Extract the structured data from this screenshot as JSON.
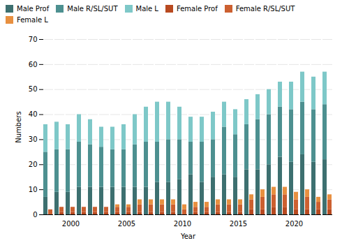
{
  "chart_data": {
    "type": "bar",
    "stacked": true,
    "categories": [
      null,
      null,
      "2000",
      null,
      null,
      null,
      null,
      "2005",
      null,
      null,
      null,
      null,
      "2010",
      null,
      null,
      null,
      null,
      "2015",
      null,
      null,
      null,
      null,
      "2020",
      null,
      null,
      null
    ],
    "series": [
      {
        "name": "Male Prof",
        "color": "#3d7070",
        "stacked": "Male",
        "values": [
          7,
          9,
          9,
          11,
          11,
          11,
          11,
          11,
          11,
          11,
          13,
          13,
          14,
          16,
          13,
          15,
          16,
          15,
          18,
          18,
          20,
          23,
          21,
          24,
          21,
          22
        ]
      },
      {
        "name": "Male R/SL/SUT",
        "color": "#4d9090",
        "stacked": "Male",
        "values": [
          18,
          17,
          17,
          18,
          17,
          16,
          15,
          15,
          17,
          18,
          16,
          17,
          16,
          13,
          16,
          15,
          19,
          17,
          18,
          20,
          20,
          20,
          21,
          21,
          21,
          22
        ]
      },
      {
        "name": "Male L",
        "color": "#7ec8c8",
        "stacked": "Male",
        "values": [
          11,
          11,
          10,
          11,
          10,
          8,
          9,
          10,
          12,
          14,
          16,
          15,
          13,
          10,
          10,
          11,
          10,
          10,
          10,
          10,
          10,
          10,
          11,
          12,
          13,
          13
        ]
      },
      {
        "name": "Female Prof",
        "color": "#b84a20",
        "stacked": "Female",
        "values": [
          0,
          1,
          1,
          1,
          1,
          1,
          1,
          1,
          1,
          1,
          1,
          1,
          0,
          1,
          1,
          1,
          1,
          1,
          2,
          2,
          3,
          3,
          2,
          2,
          2,
          2
        ]
      },
      {
        "name": "Female R/SL/SUT",
        "color": "#cc6030",
        "stacked": "Female",
        "values": [
          2,
          2,
          2,
          2,
          2,
          2,
          2,
          2,
          3,
          3,
          3,
          3,
          2,
          2,
          2,
          3,
          3,
          3,
          4,
          5,
          5,
          5,
          4,
          5,
          3,
          4
        ]
      },
      {
        "name": "Female L",
        "color": "#e89040",
        "stacked": "Female",
        "values": [
          0,
          0,
          0,
          0,
          0,
          0,
          1,
          1,
          2,
          2,
          2,
          2,
          2,
          2,
          2,
          2,
          2,
          2,
          2,
          3,
          3,
          3,
          3,
          3,
          2,
          2
        ]
      }
    ],
    "xlabel": "Year",
    "ylabel": "Numbers",
    "ylim": [
      0,
      70
    ],
    "yticks": [
      0,
      10,
      20,
      30,
      40,
      50,
      60,
      70
    ],
    "grid": true,
    "legend": "upper left"
  }
}
